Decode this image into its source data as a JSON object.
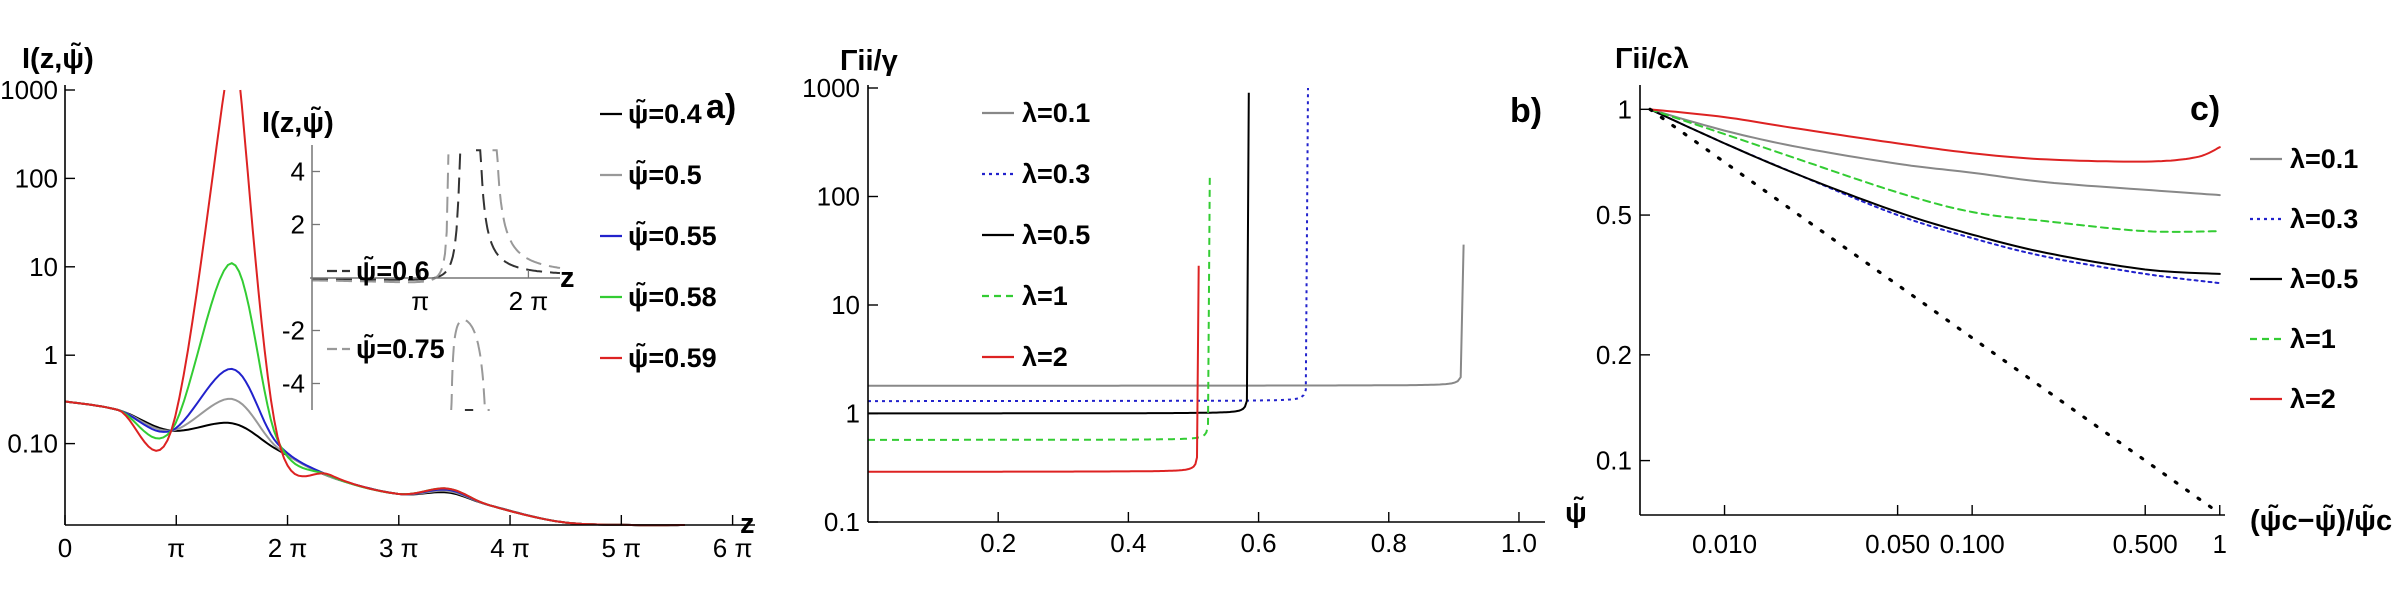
{
  "chart_data": [
    {
      "panel_label": "a)",
      "type": "line",
      "ylabel": "I(z,ψ̃)",
      "xlabel": "z",
      "y_scale": "log",
      "xlim": [
        0,
        19.2
      ],
      "ylim": [
        0.012,
        1000
      ],
      "x_ticks": [
        {
          "value": 0,
          "label": "0"
        },
        {
          "value": 3.1416,
          "label": "π"
        },
        {
          "value": 6.2832,
          "label": "2 π"
        },
        {
          "value": 9.4248,
          "label": "3 π"
        },
        {
          "value": 12.566,
          "label": "4 π"
        },
        {
          "value": 15.708,
          "label": "5 π"
        },
        {
          "value": 18.85,
          "label": "6 π"
        }
      ],
      "y_ticks": [
        {
          "value": 0.1,
          "label": "0.10"
        },
        {
          "value": 1,
          "label": "1"
        },
        {
          "value": 10,
          "label": "10"
        },
        {
          "value": 100,
          "label": "100"
        },
        {
          "value": 1000,
          "label": "1000"
        }
      ],
      "legend_position": "right",
      "series": [
        {
          "name": "ψ̃=0.4",
          "color": "#000000",
          "x": [
            0,
            1.5,
            3.0,
            4.71,
            6.0,
            7.5,
            9.4,
            10.8,
            12.0,
            14.0,
            16.0,
            17.5
          ],
          "y": [
            0.3,
            0.24,
            0.14,
            0.17,
            0.085,
            0.042,
            0.027,
            0.028,
            0.02,
            0.013,
            0.012,
            0.012
          ]
        },
        {
          "name": "ψ̃=0.5",
          "color": "#999999",
          "x": [
            0,
            1.5,
            3.0,
            4.71,
            6.0,
            7.5,
            9.4,
            10.8,
            12.0,
            14.0,
            16.0,
            17.5
          ],
          "y": [
            0.3,
            0.24,
            0.14,
            0.32,
            0.09,
            0.042,
            0.027,
            0.029,
            0.02,
            0.013,
            0.012,
            0.012
          ]
        },
        {
          "name": "ψ̃=0.55",
          "color": "#2222cc",
          "x": [
            0,
            1.5,
            3.0,
            4.71,
            6.0,
            7.5,
            9.4,
            10.8,
            12.0,
            14.0,
            16.0,
            17.5
          ],
          "y": [
            0.3,
            0.24,
            0.14,
            0.7,
            0.1,
            0.043,
            0.027,
            0.03,
            0.02,
            0.013,
            0.012,
            0.012
          ]
        },
        {
          "name": "ψ̃=0.58",
          "color": "#33cc33",
          "x": [
            0,
            1.5,
            3.0,
            4.71,
            6.0,
            7.5,
            9.4,
            10.8,
            12.0,
            14.0,
            16.0,
            17.5
          ],
          "y": [
            0.3,
            0.24,
            0.14,
            11,
            0.11,
            0.043,
            0.027,
            0.031,
            0.02,
            0.013,
            0.012,
            0.012
          ]
        },
        {
          "name": "ψ̃=0.59",
          "color": "#dd2222",
          "pole_x": [
            4.5,
            4.95
          ],
          "x": [
            0,
            1.5,
            3.0,
            4.71,
            6.0,
            7.5,
            9.4,
            10.8,
            12.0,
            14.0,
            16.0,
            17.5
          ],
          "y": [
            0.3,
            0.24,
            0.14,
            1000,
            0.12,
            0.044,
            0.027,
            0.031,
            0.02,
            0.013,
            0.012,
            0.012
          ]
        }
      ],
      "inset": {
        "ylabel": "I(z,ψ̃)",
        "xlabel": "z",
        "xlim": [
          0,
          7.2
        ],
        "ylim": [
          -5,
          5
        ],
        "x_ticks": [
          {
            "value": 3.1416,
            "label": "π"
          },
          {
            "value": 6.2832,
            "label": "2 π"
          }
        ],
        "y_ticks": [
          {
            "value": 4,
            "label": "4"
          },
          {
            "value": 2,
            "label": "2"
          },
          {
            "value": -2,
            "label": "-2"
          },
          {
            "value": -4,
            "label": "-4"
          }
        ],
        "series": [
          {
            "name": "ψ̃=0.6",
            "color": "#333333",
            "dash": "long",
            "poles": [
              4.4,
              4.72
            ]
          },
          {
            "name": "ψ̃=0.75",
            "color": "#999999",
            "dash": "long",
            "poles": [
              4.0,
              5.2
            ]
          }
        ]
      }
    },
    {
      "panel_label": "b)",
      "type": "line",
      "ylabel": "Γii/γ",
      "xlabel": "ψ̃",
      "y_scale": "log",
      "xlim": [
        0,
        1.04
      ],
      "ylim": [
        0.1,
        1000
      ],
      "x_ticks": [
        {
          "value": 0.2,
          "label": "0.2"
        },
        {
          "value": 0.4,
          "label": "0.4"
        },
        {
          "value": 0.6,
          "label": "0.6"
        },
        {
          "value": 0.8,
          "label": "0.8"
        },
        {
          "value": 1.0,
          "label": "1.0"
        }
      ],
      "y_ticks": [
        {
          "value": 0.1,
          "label": "0.1"
        },
        {
          "value": 1,
          "label": "1"
        },
        {
          "value": 10,
          "label": "10"
        },
        {
          "value": 100,
          "label": "100"
        },
        {
          "value": 1000,
          "label": "1000"
        }
      ],
      "legend_position": "top-left",
      "series": [
        {
          "name": "λ=0.1",
          "color": "#888888",
          "dash": "solid",
          "base": 1.8,
          "psi_c": 0.915,
          "top": 36
        },
        {
          "name": "λ=0.3",
          "color": "#2222cc",
          "dash": "dotted",
          "base": 1.3,
          "psi_c": 0.676,
          "top": 1000
        },
        {
          "name": "λ=0.5",
          "color": "#000000",
          "dash": "solid",
          "base": 1.0,
          "psi_c": 0.585,
          "top": 1000
        },
        {
          "name": "λ=1",
          "color": "#33cc33",
          "dash": "dashed",
          "base": 0.57,
          "psi_c": 0.525,
          "top": 160
        },
        {
          "name": "λ=2",
          "color": "#dd2222",
          "dash": "solid",
          "base": 0.29,
          "psi_c": 0.508,
          "top": 23
        }
      ]
    },
    {
      "panel_label": "c)",
      "type": "line",
      "ylabel": "Γii/cλ",
      "xlabel": "(ψ̃c−ψ̃)/ψ̃c",
      "x_scale": "log",
      "y_scale": "log",
      "xlim": [
        0.005,
        1.05
      ],
      "ylim": [
        0.07,
        1.15
      ],
      "x_ticks": [
        {
          "value": 0.01,
          "label": "0.010"
        },
        {
          "value": 0.05,
          "label": "0.050"
        },
        {
          "value": 0.1,
          "label": "0.100"
        },
        {
          "value": 0.5,
          "label": "0.500"
        },
        {
          "value": 1,
          "label": "1"
        }
      ],
      "y_ticks": [
        {
          "value": 0.1,
          "label": "0.1"
        },
        {
          "value": 0.2,
          "label": "0.2"
        },
        {
          "value": 0.5,
          "label": "0.5"
        },
        {
          "value": 1,
          "label": "1"
        }
      ],
      "legend_position": "right",
      "series": [
        {
          "name": "λ=0.1",
          "color": "#888888",
          "dash": "solid",
          "x": [
            0.005,
            0.01,
            0.02,
            0.05,
            0.1,
            0.2,
            0.5,
            1
          ],
          "y": [
            1.0,
            0.87,
            0.78,
            0.7,
            0.66,
            0.62,
            0.59,
            0.57
          ]
        },
        {
          "name": "λ=0.3",
          "color": "#2222cc",
          "dash": "dotted",
          "x": [
            0.005,
            0.01,
            0.02,
            0.05,
            0.1,
            0.2,
            0.5,
            1
          ],
          "y": [
            1.0,
            0.8,
            0.65,
            0.5,
            0.43,
            0.38,
            0.34,
            0.32
          ]
        },
        {
          "name": "λ=0.5",
          "color": "#000000",
          "dash": "solid",
          "x": [
            0.005,
            0.01,
            0.02,
            0.05,
            0.1,
            0.2,
            0.5,
            1
          ],
          "y": [
            1.0,
            0.8,
            0.65,
            0.51,
            0.44,
            0.39,
            0.35,
            0.34
          ]
        },
        {
          "name": "λ=1",
          "color": "#33cc33",
          "dash": "dashed",
          "x": [
            0.005,
            0.01,
            0.02,
            0.05,
            0.1,
            0.2,
            0.5,
            1
          ],
          "y": [
            1.0,
            0.85,
            0.72,
            0.58,
            0.51,
            0.48,
            0.45,
            0.45
          ]
        },
        {
          "name": "λ=2",
          "color": "#dd2222",
          "dash": "solid",
          "x": [
            0.005,
            0.01,
            0.02,
            0.05,
            0.1,
            0.2,
            0.5,
            0.8,
            1
          ],
          "y": [
            1.0,
            0.95,
            0.88,
            0.8,
            0.75,
            0.72,
            0.71,
            0.73,
            0.78
          ]
        },
        {
          "name": "",
          "color": "#000000",
          "dash": "dots",
          "x": [
            0.005,
            1
          ],
          "y": [
            1.0,
            0.0707
          ]
        }
      ]
    }
  ]
}
